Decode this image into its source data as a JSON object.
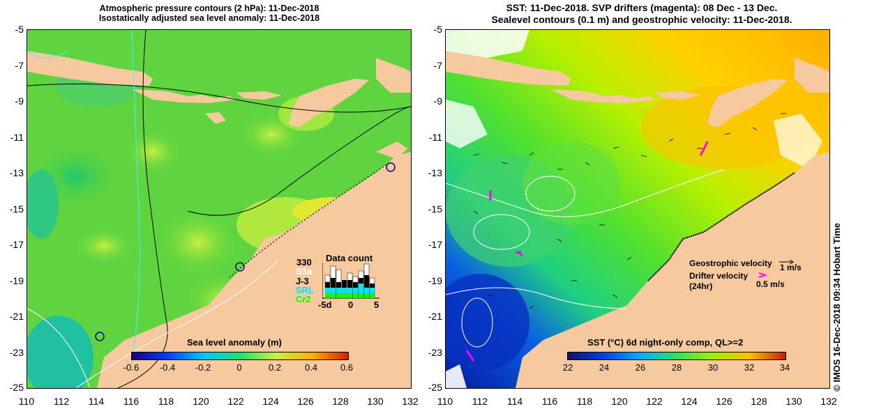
{
  "left_panel": {
    "title_line1": "Atmospheric pressure contours (2 hPa): 11-Dec-2018",
    "title_line2": "Isostatically adjusted sea level anomaly: 11-Dec-2018",
    "colorbar": {
      "label": "Sea level anomaly (m)",
      "ticks": [
        "-0.6",
        "-0.4",
        "-0.2",
        "0",
        "0.2",
        "0.4",
        "0.6"
      ]
    },
    "data_count": {
      "title": "Data count",
      "max_label": "330",
      "missions": [
        {
          "name": "S3a",
          "color": "#ffffff"
        },
        {
          "name": "J-3",
          "color": "#000000"
        },
        {
          "name": "SRL",
          "color": "#00e5ff"
        },
        {
          "name": "Cr2",
          "color": "#00ff00"
        }
      ],
      "axis_labels": [
        "-5d",
        "0",
        "5"
      ]
    }
  },
  "right_panel": {
    "title_line1": "SST: 11-Dec-2018. SVP drifters (magenta): 08 Dec - 13 Dec.",
    "title_line2": "Sealevel contours (0.1 m) and geostrophic velocity: 11-Dec-2018.",
    "colorbar": {
      "label": "SST (°C) 6d night-only comp, QL>=2",
      "ticks": [
        "22",
        "24",
        "26",
        "28",
        "30",
        "32",
        "34"
      ]
    },
    "legend": {
      "geo_label": "Geostrophic velocity",
      "geo_value": "1 m/s",
      "drifter_label_1": "Drifter velocity",
      "drifter_label_2": "(24hr)",
      "drifter_value": "0.5 m/s"
    }
  },
  "axes": {
    "y_ticks": [
      "-5",
      "-7",
      "-9",
      "-11",
      "-13",
      "-15",
      "-17",
      "-19",
      "-21",
      "-23",
      "-25"
    ],
    "x_ticks": [
      "110",
      "112",
      "114",
      "116",
      "118",
      "120",
      "122",
      "124",
      "126",
      "128",
      "130",
      "132"
    ]
  },
  "credit": "© IMOS 16-Dec-2018 09:34 Hobart Time",
  "colors": {
    "land": "#f6c99e",
    "sla_ramp": [
      "#1a0080",
      "#0040ff",
      "#00c8ff",
      "#20e070",
      "#c8f040",
      "#ffb000",
      "#d02000"
    ],
    "sst_ramp": [
      "#10106a",
      "#0040e0",
      "#00b0ff",
      "#30e060",
      "#a0f000",
      "#ffc000",
      "#c02000"
    ]
  }
}
